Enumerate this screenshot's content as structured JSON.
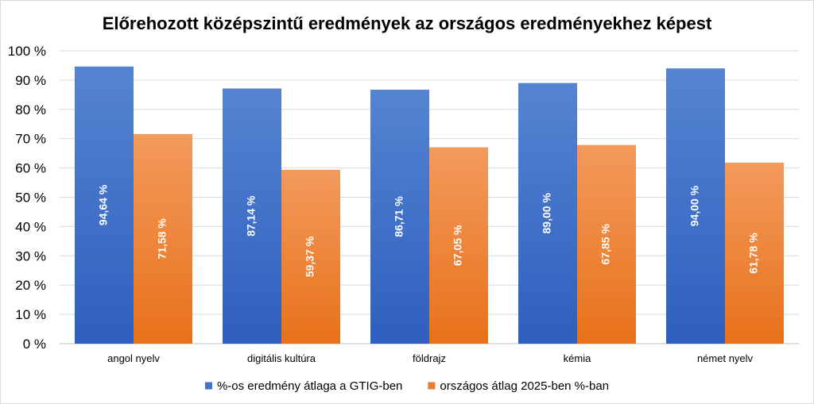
{
  "chart_data": {
    "type": "bar",
    "title": "Előrehozott középszintű eredmények az országos eredményekhez képest",
    "categories": [
      "angol nyelv",
      "digitális kultúra",
      "földrajz",
      "kémia",
      "német nyelv"
    ],
    "series": [
      {
        "name": "%-os eredmény átlaga a GTIG-ben",
        "values": [
          94.64,
          87.14,
          86.71,
          89.0,
          94.0
        ],
        "labels": [
          "94,64 %",
          "87,14 %",
          "86,71 %",
          "89,00 %",
          "94,00 %"
        ],
        "color": "#4472C4"
      },
      {
        "name": "országos átlag 2025-ben %-ban",
        "values": [
          71.58,
          59.37,
          67.05,
          67.85,
          61.78
        ],
        "labels": [
          "71,58 %",
          "59,37 %",
          "67,05 %",
          "67,85 %",
          "61,78 %"
        ],
        "color": "#ED7D31"
      }
    ],
    "ylim": [
      0,
      100
    ],
    "yticks": [
      "0 %",
      "10 %",
      "20 %",
      "30 %",
      "40 %",
      "50 %",
      "60 %",
      "70 %",
      "80 %",
      "90 %",
      "100 %"
    ],
    "grid": true,
    "legend_position": "bottom"
  }
}
